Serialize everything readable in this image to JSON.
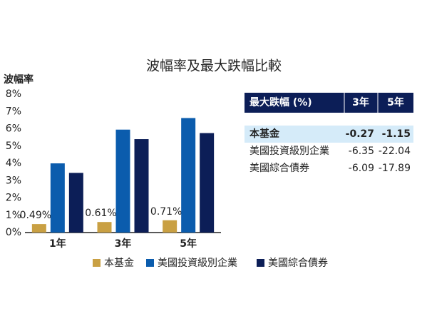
{
  "chart_data": {
    "type": "bar",
    "title": "波幅率及最大跌幅比較",
    "y_label": "波幅率",
    "categories": [
      "1年",
      "3年",
      "5年"
    ],
    "series": [
      {
        "name": "本基金",
        "color": "#c9a043",
        "values": [
          0.49,
          0.61,
          0.71
        ],
        "value_labels": [
          "0.49%",
          "0.61%",
          "0.71%"
        ]
      },
      {
        "name": "美國投資級別企業",
        "color": "#0b5cad",
        "values": [
          4.0,
          5.95,
          6.62
        ]
      },
      {
        "name": "美國綜合債券",
        "color": "#0c1e57",
        "values": [
          3.45,
          5.4,
          5.75
        ]
      }
    ],
    "ylim": [
      0,
      8
    ],
    "yticks": [
      {
        "value": 0,
        "label": "0%"
      },
      {
        "value": 1,
        "label": "1%"
      },
      {
        "value": 2,
        "label": "2%"
      },
      {
        "value": 3,
        "label": "3%"
      },
      {
        "value": 4,
        "label": "4%"
      },
      {
        "value": 5,
        "label": "5%"
      },
      {
        "value": 6,
        "label": "6%"
      },
      {
        "value": 7,
        "label": "7%"
      },
      {
        "value": 8,
        "label": "8%"
      }
    ]
  },
  "table": {
    "header": [
      "最大跌幅 (%)",
      "3年",
      "5年"
    ],
    "rows": [
      [
        "本基金",
        -0.27,
        -1.15
      ],
      [
        "美國投資級別企業",
        -6.35,
        -22.04
      ],
      [
        "美國綜合債券",
        -6.09,
        -17.89
      ]
    ]
  }
}
